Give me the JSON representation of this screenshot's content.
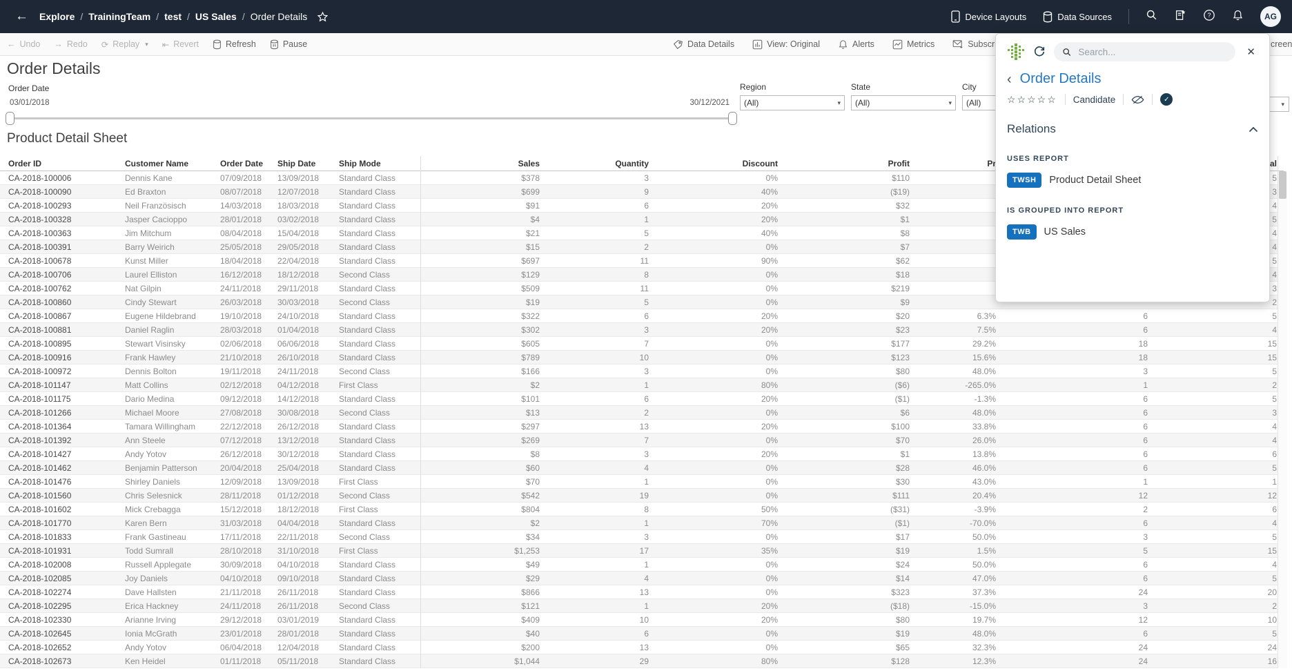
{
  "topbar": {
    "breadcrumb": [
      "Explore",
      "TrainingTeam",
      "test",
      "US Sales",
      "Order Details"
    ],
    "separator": "/",
    "device_layouts": "Device Layouts",
    "data_sources": "Data Sources",
    "avatar_initials": "AG"
  },
  "toolbar": {
    "undo": "Undo",
    "redo": "Redo",
    "replay": "Replay",
    "revert": "Revert",
    "refresh": "Refresh",
    "pause": "Pause",
    "data_details": "Data Details",
    "view": "View: Original",
    "alerts": "Alerts",
    "metrics": "Metrics",
    "subscribe": "Subscribe",
    "fullscreen_fragment": "creen"
  },
  "view": {
    "title": "Order Details",
    "subtitle": "Product Detail Sheet",
    "date_filter": {
      "label": "Order Date",
      "start": "03/01/2018",
      "end": "30/12/2021"
    },
    "filters": [
      {
        "label": "Region",
        "value": "(All)"
      },
      {
        "label": "State",
        "value": "(All)"
      },
      {
        "label": "City",
        "value": "(All)"
      }
    ]
  },
  "table": {
    "headers": [
      "Order ID",
      "Customer Name",
      "Order Date",
      "Ship Date",
      "Ship Mode",
      "Sales",
      "Quantity",
      "Discount",
      "Profit",
      "Pr",
      "",
      "al"
    ],
    "rows": [
      [
        "CA-2018-100006",
        "Dennis Kane",
        "07/09/2018",
        "13/09/2018",
        "Standard Class",
        "$378",
        "3",
        "0%",
        "$110",
        "",
        "",
        "5"
      ],
      [
        "CA-2018-100090",
        "Ed Braxton",
        "08/07/2018",
        "12/07/2018",
        "Standard Class",
        "$699",
        "9",
        "40%",
        "($19)",
        "",
        "",
        "3"
      ],
      [
        "CA-2018-100293",
        "Neil Französisch",
        "14/03/2018",
        "18/03/2018",
        "Standard Class",
        "$91",
        "6",
        "20%",
        "$32",
        "",
        "",
        "4"
      ],
      [
        "CA-2018-100328",
        "Jasper Cacioppo",
        "28/01/2018",
        "03/02/2018",
        "Standard Class",
        "$4",
        "1",
        "20%",
        "$1",
        "",
        "",
        "5"
      ],
      [
        "CA-2018-100363",
        "Jim Mitchum",
        "08/04/2018",
        "15/04/2018",
        "Standard Class",
        "$21",
        "5",
        "40%",
        "$8",
        "",
        "",
        "4"
      ],
      [
        "CA-2018-100391",
        "Barry Weirich",
        "25/05/2018",
        "29/05/2018",
        "Standard Class",
        "$15",
        "2",
        "0%",
        "$7",
        "",
        "",
        "4"
      ],
      [
        "CA-2018-100678",
        "Kunst Miller",
        "18/04/2018",
        "22/04/2018",
        "Standard Class",
        "$697",
        "11",
        "90%",
        "$62",
        "",
        "",
        "5"
      ],
      [
        "CA-2018-100706",
        "Laurel Elliston",
        "16/12/2018",
        "18/12/2018",
        "Second Class",
        "$129",
        "8",
        "0%",
        "$18",
        "",
        "",
        "4"
      ],
      [
        "CA-2018-100762",
        "Nat Gilpin",
        "24/11/2018",
        "29/11/2018",
        "Standard Class",
        "$509",
        "11",
        "0%",
        "$219",
        "",
        "",
        "3"
      ],
      [
        "CA-2018-100860",
        "Cindy Stewart",
        "26/03/2018",
        "30/03/2018",
        "Second Class",
        "$19",
        "5",
        "0%",
        "$9",
        "",
        "",
        "2"
      ],
      [
        "CA-2018-100867",
        "Eugene Hildebrand",
        "19/10/2018",
        "24/10/2018",
        "Standard Class",
        "$322",
        "6",
        "20%",
        "$20",
        "6.3%",
        "6",
        "5"
      ],
      [
        "CA-2018-100881",
        "Daniel Raglin",
        "28/03/2018",
        "01/04/2018",
        "Standard Class",
        "$302",
        "3",
        "20%",
        "$23",
        "7.5%",
        "6",
        "4"
      ],
      [
        "CA-2018-100895",
        "Stewart Visinsky",
        "02/06/2018",
        "06/06/2018",
        "Standard Class",
        "$605",
        "7",
        "0%",
        "$177",
        "29.2%",
        "18",
        "15"
      ],
      [
        "CA-2018-100916",
        "Frank Hawley",
        "21/10/2018",
        "26/10/2018",
        "Standard Class",
        "$789",
        "10",
        "0%",
        "$123",
        "15.6%",
        "18",
        "15"
      ],
      [
        "CA-2018-100972",
        "Dennis Bolton",
        "19/11/2018",
        "24/11/2018",
        "Second Class",
        "$166",
        "3",
        "0%",
        "$80",
        "48.0%",
        "3",
        "5"
      ],
      [
        "CA-2018-101147",
        "Matt Collins",
        "02/12/2018",
        "04/12/2018",
        "First Class",
        "$2",
        "1",
        "80%",
        "($6)",
        "-265.0%",
        "1",
        "2"
      ],
      [
        "CA-2018-101175",
        "Dario Medina",
        "09/12/2018",
        "14/12/2018",
        "Standard Class",
        "$101",
        "6",
        "20%",
        "($1)",
        "-1.3%",
        "6",
        "5"
      ],
      [
        "CA-2018-101266",
        "Michael Moore",
        "27/08/2018",
        "30/08/2018",
        "Second Class",
        "$13",
        "2",
        "0%",
        "$6",
        "48.0%",
        "6",
        "3"
      ],
      [
        "CA-2018-101364",
        "Tamara Willingham",
        "22/12/2018",
        "26/12/2018",
        "Standard Class",
        "$297",
        "13",
        "20%",
        "$100",
        "33.8%",
        "6",
        "4"
      ],
      [
        "CA-2018-101392",
        "Ann Steele",
        "07/12/2018",
        "13/12/2018",
        "Standard Class",
        "$269",
        "7",
        "0%",
        "$70",
        "26.0%",
        "6",
        "4"
      ],
      [
        "CA-2018-101427",
        "Andy Yotov",
        "26/12/2018",
        "30/12/2018",
        "Standard Class",
        "$8",
        "3",
        "20%",
        "$1",
        "13.8%",
        "6",
        "6"
      ],
      [
        "CA-2018-101462",
        "Benjamin Patterson",
        "20/04/2018",
        "25/04/2018",
        "Standard Class",
        "$60",
        "4",
        "0%",
        "$28",
        "46.0%",
        "6",
        "5"
      ],
      [
        "CA-2018-101476",
        "Shirley Daniels",
        "12/09/2018",
        "13/09/2018",
        "First Class",
        "$70",
        "1",
        "0%",
        "$30",
        "43.0%",
        "1",
        "1"
      ],
      [
        "CA-2018-101560",
        "Chris Selesnick",
        "28/11/2018",
        "01/12/2018",
        "Second Class",
        "$542",
        "19",
        "0%",
        "$111",
        "20.4%",
        "12",
        "12"
      ],
      [
        "CA-2018-101602",
        "Mick Crebagga",
        "15/12/2018",
        "18/12/2018",
        "First Class",
        "$804",
        "8",
        "50%",
        "($31)",
        "-3.9%",
        "2",
        "6"
      ],
      [
        "CA-2018-101770",
        "Karen Bern",
        "31/03/2018",
        "04/04/2018",
        "Standard Class",
        "$2",
        "1",
        "70%",
        "($1)",
        "-70.0%",
        "6",
        "4"
      ],
      [
        "CA-2018-101833",
        "Frank Gastineau",
        "17/11/2018",
        "22/11/2018",
        "Second Class",
        "$34",
        "3",
        "0%",
        "$17",
        "50.0%",
        "3",
        "5"
      ],
      [
        "CA-2018-101931",
        "Todd Sumrall",
        "28/10/2018",
        "31/10/2018",
        "First Class",
        "$1,253",
        "17",
        "35%",
        "$19",
        "1.5%",
        "5",
        "15"
      ],
      [
        "CA-2018-102008",
        "Russell Applegate",
        "30/09/2018",
        "04/10/2018",
        "Standard Class",
        "$49",
        "1",
        "0%",
        "$24",
        "50.0%",
        "6",
        "4"
      ],
      [
        "CA-2018-102085",
        "Joy Daniels",
        "04/10/2018",
        "09/10/2018",
        "Standard Class",
        "$29",
        "4",
        "0%",
        "$14",
        "47.0%",
        "6",
        "5"
      ],
      [
        "CA-2018-102274",
        "Dave Hallsten",
        "21/11/2018",
        "26/11/2018",
        "Standard Class",
        "$866",
        "13",
        "0%",
        "$323",
        "37.3%",
        "24",
        "20"
      ],
      [
        "CA-2018-102295",
        "Erica Hackney",
        "24/11/2018",
        "26/11/2018",
        "Second Class",
        "$121",
        "1",
        "20%",
        "($18)",
        "-15.0%",
        "3",
        "2"
      ],
      [
        "CA-2018-102330",
        "Arianne Irving",
        "29/12/2018",
        "03/01/2019",
        "Standard Class",
        "$409",
        "10",
        "20%",
        "$80",
        "19.7%",
        "12",
        "10"
      ],
      [
        "CA-2018-102645",
        "Ionia McGrath",
        "23/01/2018",
        "28/01/2018",
        "Standard Class",
        "$40",
        "6",
        "0%",
        "$19",
        "48.0%",
        "6",
        "5"
      ],
      [
        "CA-2018-102652",
        "Andy Yotov",
        "06/04/2018",
        "12/04/2018",
        "Standard Class",
        "$200",
        "13",
        "0%",
        "$65",
        "32.3%",
        "24",
        "24"
      ],
      [
        "CA-2018-102673",
        "Ken Heidel",
        "01/11/2018",
        "05/11/2018",
        "Standard Class",
        "$1,044",
        "29",
        "80%",
        "$128",
        "12.3%",
        "24",
        "16"
      ]
    ]
  },
  "panel": {
    "search_placeholder": "Search...",
    "title": "Order Details",
    "stars": 5,
    "star_char": "☆",
    "status": "Candidate",
    "relations_title": "Relations",
    "uses_report_label": "USES REPORT",
    "uses_report_badge": "TWSH",
    "uses_report_name": "Product Detail Sheet",
    "grouped_label": "IS GROUPED INTO REPORT",
    "grouped_badge": "TWB",
    "grouped_name": "US Sales"
  },
  "colors": {
    "topbar": "#1e2735",
    "accent_blue": "#2478c2",
    "badge_blue": "#1571bd",
    "logo_green": "#76b043"
  }
}
